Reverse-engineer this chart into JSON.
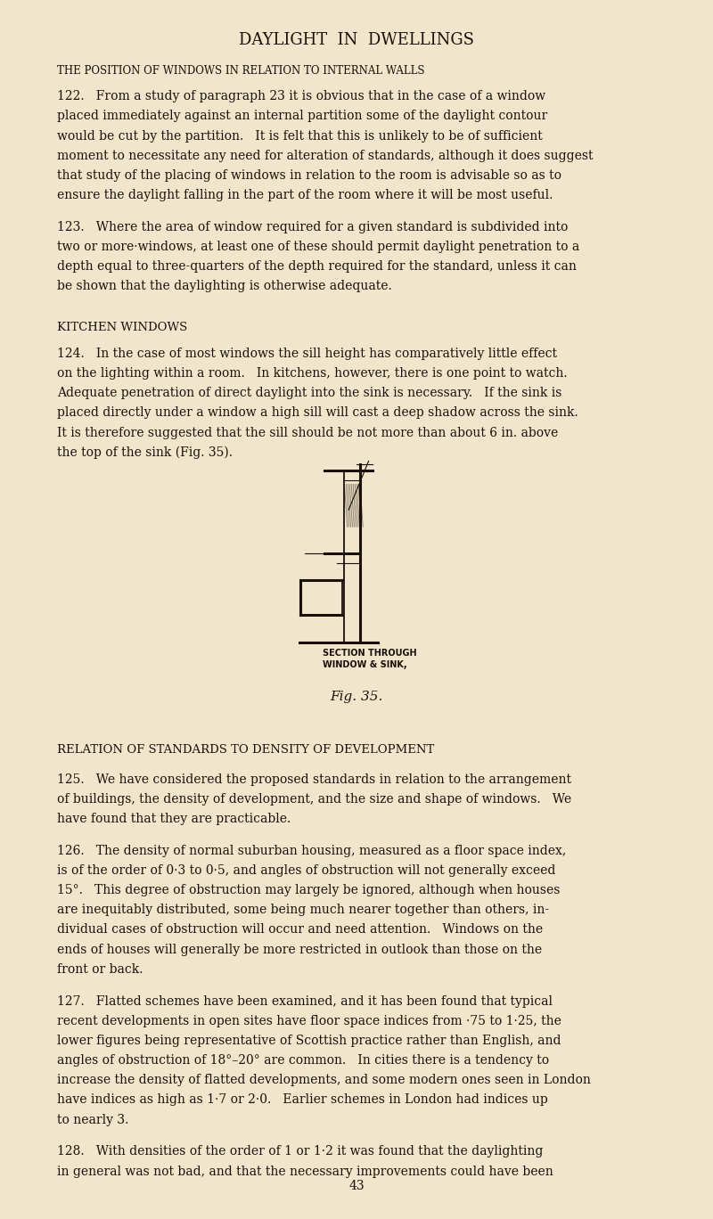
{
  "bg_color": "#f0e6cc",
  "text_color": "#1a1008",
  "page_width": 8.0,
  "page_height": 13.68,
  "dpi": 100,
  "main_title": "DAYLIGHT  IN  DWELLINGS",
  "section1_heading": "THE POSITION OF WINDOWS IN RELATION TO INTERNAL WALLS",
  "section2_heading": "KITCHEN WINDOWS",
  "fig_caption1": "SECTION THROUGH\nWINDOW & SINK,",
  "fig_caption2": "Fig. 35.",
  "section3_heading": "RELATION OF STANDARDS TO DENSITY OF DEVELOPMENT",
  "page_number": "43",
  "para122_lines": [
    "122.   From a study of paragraph 23 it is obvious that in the case of a window",
    "placed immediately against an internal partition some of the daylight contour",
    "would be cut by the partition.   It is felt that this is unlikely to be of sufficient",
    "moment to necessitate any need for alteration of standards, although it does suggest",
    "that study of the placing of windows in relation to the room is advisable so as to",
    "ensure the daylight falling in the part of the room where it will be most useful."
  ],
  "para123_lines": [
    "123.   Where the area of window required for a given standard is subdivided into",
    "two or more·windows, at least one of these should permit daylight penetration to a",
    "depth equal to three-quarters of the depth required for the standard, unless it can",
    "be shown that the daylighting is otherwise adequate."
  ],
  "para124_lines": [
    "124.   In the case of most windows the sill height has comparatively little effect",
    "on the lighting within a room.   In kitchens, however, there is one point to watch.",
    "Adequate penetration of direct daylight into the sink is necessary.   If the sink is",
    "placed directly under a window a high sill will cast a deep shadow across the sink.",
    "It is therefore suggested that the sill should be not more than about 6 in. above",
    "the top of the sink (Fig. 35)."
  ],
  "para125_lines": [
    "125.   We have considered the proposed standards in relation to the arrangement",
    "of buildings, the density of development, and the size and shape of windows.   We",
    "have found that they are practicable."
  ],
  "para126_lines": [
    "126.   The density of normal suburban housing, measured as a floor space index,",
    "is of the order of 0·3 to 0·5, and angles of obstruction will not generally exceed",
    "15°.   This degree of obstruction may largely be ignored, although when houses",
    "are inequitably distributed, some being much nearer together than others, in-",
    "dividual cases of obstruction will occur and need attention.   Windows on the",
    "ends of houses will generally be more restricted in outlook than those on the",
    "front or back."
  ],
  "para127_lines": [
    "127.   Flatted schemes have been examined, and it has been found that typical",
    "recent developments in open sites have floor space indices from ·75 to 1·25, the",
    "lower figures being representative of Scottish practice rather than English, and",
    "angles of obstruction of 18°–20° are common.   In cities there is a tendency to",
    "increase the density of flatted developments, and some modern ones seen in London",
    "have indices as high as 1·7 or 2·0.   Earlier schemes in London had indices up",
    "to nearly 3."
  ],
  "para128_lines": [
    "128.   With densities of the order of 1 or 1·2 it was found that the daylighting",
    "in general was not bad, and that the necessary improvements could have been"
  ]
}
